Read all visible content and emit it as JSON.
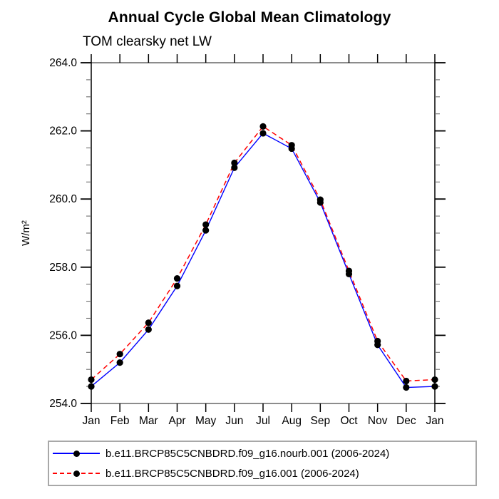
{
  "header": {
    "title": "Annual Cycle Global Mean Climatology",
    "subtitle": "TOM clearsky net LW"
  },
  "chart_data": {
    "type": "line",
    "title": "Annual Cycle Global Mean Climatology",
    "subtitle": "TOM clearsky net LW",
    "xlabel": "",
    "ylabel": "W/m²",
    "categories": [
      "Jan",
      "Feb",
      "Mar",
      "Apr",
      "May",
      "Jun",
      "Jul",
      "Aug",
      "Sep",
      "Oct",
      "Nov",
      "Dec",
      "Jan"
    ],
    "ylim": [
      254.0,
      264.0
    ],
    "ytick_major_interval": 2.0,
    "ytick_minor_interval": 0.5,
    "ytick_labels": [
      "254.0",
      "256.0",
      "258.0",
      "260.0",
      "262.0",
      "264.0"
    ],
    "grid": false,
    "legend_position": "bottom",
    "series": [
      {
        "name": "b.e11.BRCP85C5CNBDRD.f09_g16.nourb.001 (2006-2024)",
        "color": "#0000ff",
        "line_style": "solid",
        "marker": "filled-circle",
        "marker_color": "#000000",
        "values": [
          254.5,
          255.2,
          256.17,
          257.45,
          259.08,
          260.92,
          261.93,
          261.48,
          259.9,
          257.8,
          255.72,
          254.47,
          254.5
        ]
      },
      {
        "name": "b.e11.BRCP85C5CNBDRD.f09_g16.001 (2006-2024)",
        "color": "#ff0000",
        "line_style": "dashed",
        "marker": "filled-circle",
        "marker_color": "#000000",
        "values": [
          254.7,
          255.45,
          256.37,
          257.67,
          259.25,
          261.06,
          262.13,
          261.58,
          259.98,
          257.89,
          255.83,
          254.66,
          254.7
        ]
      }
    ]
  },
  "colors": {
    "frame_horizontal": "#8c8c8c",
    "frame_vertical": "#000000",
    "tick_major": "#000000",
    "tick_minor": "#6e6e6e",
    "text": "#000000",
    "legend_border": "#a8a8a8"
  }
}
